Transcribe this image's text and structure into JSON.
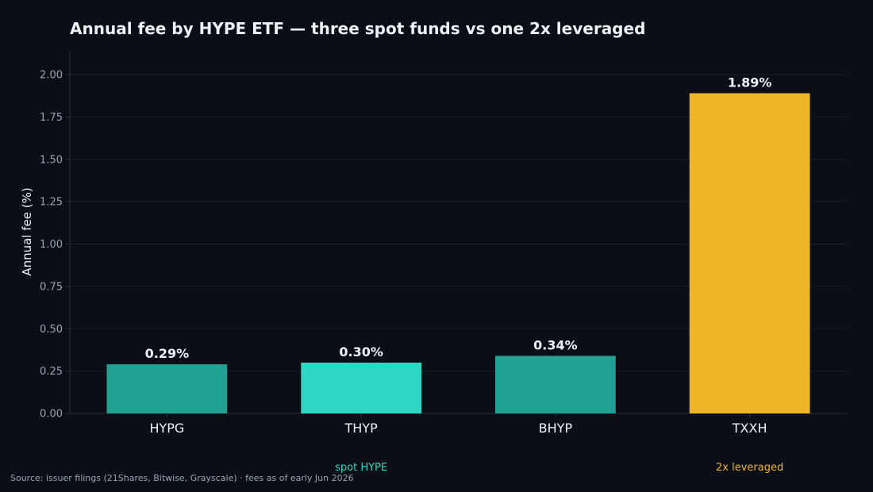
{
  "chart_data": {
    "type": "bar",
    "title": "Annual fee by HYPE ETF — three spot funds vs one 2x leveraged",
    "xlabel": "",
    "ylabel": "Annual fee (%)",
    "ylim": [
      0,
      2.15
    ],
    "yticks": [
      "0.00",
      "0.25",
      "0.50",
      "0.75",
      "1.00",
      "1.25",
      "1.50",
      "1.75",
      "2.00"
    ],
    "ytick_values": [
      0,
      0.25,
      0.5,
      0.75,
      1.0,
      1.25,
      1.5,
      1.75,
      2.0
    ],
    "grid": true,
    "categories": [
      "HYPG",
      "THYP",
      "BHYP",
      "TXXH"
    ],
    "values": [
      0.29,
      0.3,
      0.34,
      1.89
    ],
    "value_labels": [
      "0.29%",
      "0.30%",
      "0.34%",
      "1.89%"
    ],
    "bar_colors": [
      "#20a193",
      "#2ed6c3",
      "#20a193",
      "#f0b429"
    ],
    "groups": [
      {
        "label": "spot HYPE",
        "categories": [
          "HYPG",
          "THYP",
          "BHYP"
        ],
        "color": "#2ed6c3"
      },
      {
        "label": "2x leveraged",
        "categories": [
          "TXXH"
        ],
        "color": "#f0b429"
      }
    ],
    "source": "Source: issuer filings (21Shares, Bitwise, Grayscale) · fees as of early Jun 2026"
  },
  "colors": {
    "background": "#0b0e15",
    "grid": "#1a1f2a",
    "axis": "#2a303c",
    "text": "#eef1f6",
    "muted": "#9aa4b5"
  }
}
